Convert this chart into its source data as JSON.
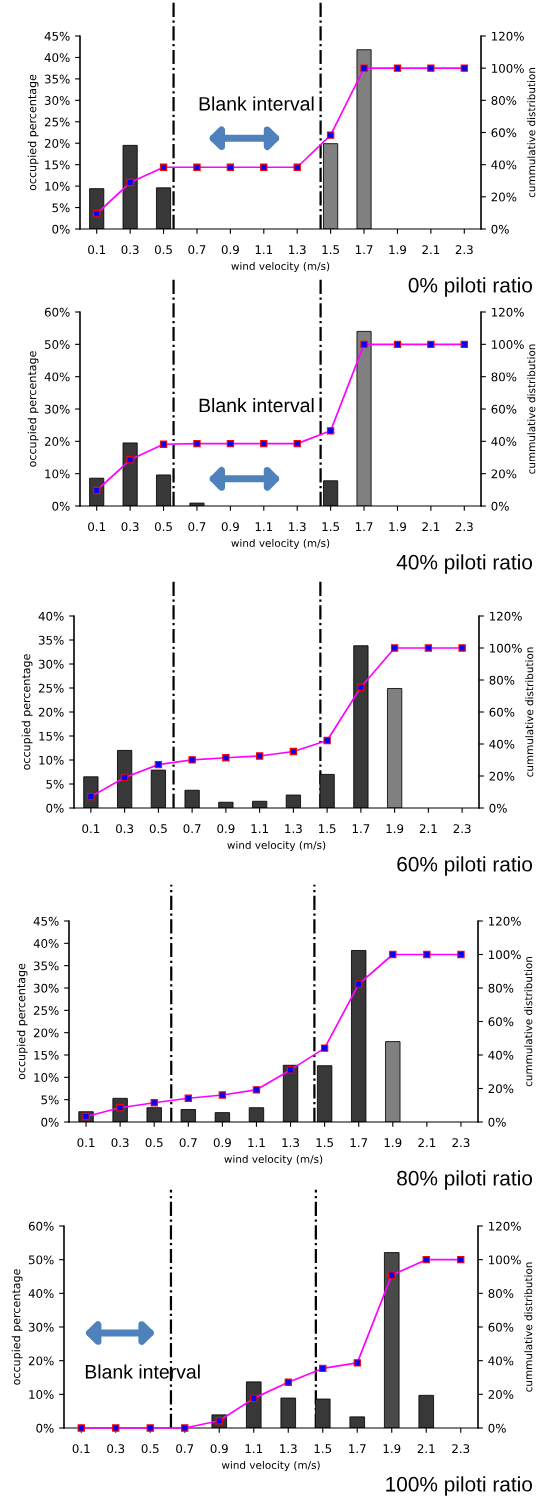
{
  "chart_data": [
    {
      "type": "bar",
      "title": "0% piloti ratio",
      "xlabel": "wind velocity (m/s)",
      "ylabel": "occupied percentage",
      "y2label": "cummulative distribution",
      "x": [
        0.1,
        0.3,
        0.5,
        0.7,
        0.9,
        1.1,
        1.3,
        1.5,
        1.7,
        1.9,
        2.1,
        2.3
      ],
      "xlim": [
        0,
        2.4
      ],
      "xticks": [
        0.1,
        0.3,
        0.5,
        0.7,
        0.9,
        1.1,
        1.3,
        1.5,
        1.7,
        1.9,
        2.1,
        2.3
      ],
      "ylim": [
        0,
        45
      ],
      "yticks": [
        {
          "value": 0,
          "label": "0%"
        },
        {
          "value": 5,
          "label": "5%"
        },
        {
          "value": 10,
          "label": "10%"
        },
        {
          "value": 15,
          "label": "15%"
        },
        {
          "value": 20,
          "label": "20%"
        },
        {
          "value": 25,
          "label": "25%"
        },
        {
          "value": 30,
          "label": "30%"
        },
        {
          "value": 35,
          "label": "35%"
        },
        {
          "value": 40,
          "label": "40%"
        },
        {
          "value": 45,
          "label": "45%"
        }
      ],
      "y2lim": [
        0,
        120
      ],
      "y2ticks": [
        {
          "value": 0,
          "label": "0%"
        },
        {
          "value": 20,
          "label": "20%"
        },
        {
          "value": 40,
          "label": "40%"
        },
        {
          "value": 60,
          "label": "60%"
        },
        {
          "value": 80,
          "label": "80%"
        },
        {
          "value": 100,
          "label": "100%"
        },
        {
          "value": 120,
          "label": "120%"
        }
      ],
      "series": [
        {
          "type": "bar",
          "colors": [
            "#383838",
            "#383838",
            "#383838",
            "#383838",
            "#383838",
            "#383838",
            "#383838",
            "#808080",
            "#808080",
            "#383838",
            "#383838",
            "#383838"
          ],
          "values": [
            9.4,
            19.5,
            9.6,
            0,
            0,
            0,
            0,
            19.9,
            41.8,
            0,
            0,
            0
          ]
        },
        {
          "type": "line",
          "axis": "y2",
          "color": "#ff00ff",
          "marker": "square",
          "values": [
            9.5,
            28.9,
            38.4,
            38.4,
            38.4,
            38.4,
            38.4,
            58.4,
            100,
            100,
            100,
            100
          ]
        }
      ],
      "ref_lines": [
        {
          "axis": "x",
          "value": 0.56,
          "color": "#000000",
          "line_style": "dashdot"
        },
        {
          "axis": "x",
          "value": 1.44,
          "color": "#000000",
          "line_style": "dashdot"
        }
      ],
      "annotations": [
        "Blank interval"
      ]
    },
    {
      "type": "bar",
      "title": "40% piloti ratio",
      "xlabel": "wind velocity (m/s)",
      "ylabel": "occupied percentage",
      "y2label": "cummulative distribution",
      "x": [
        0.1,
        0.3,
        0.5,
        0.7,
        0.9,
        1.1,
        1.3,
        1.5,
        1.7,
        1.9,
        2.1,
        2.3
      ],
      "xlim": [
        0,
        2.4
      ],
      "xticks": [
        0.1,
        0.3,
        0.5,
        0.7,
        0.9,
        1.1,
        1.3,
        1.5,
        1.7,
        1.9,
        2.1,
        2.3
      ],
      "ylim": [
        0,
        60
      ],
      "yticks": [
        {
          "value": 0,
          "label": "0%"
        },
        {
          "value": 10,
          "label": "10%"
        },
        {
          "value": 20,
          "label": "20%"
        },
        {
          "value": 30,
          "label": "30%"
        },
        {
          "value": 40,
          "label": "40%"
        },
        {
          "value": 50,
          "label": "50%"
        },
        {
          "value": 60,
          "label": "60%"
        }
      ],
      "y2lim": [
        0,
        120
      ],
      "y2ticks": [
        {
          "value": 0,
          "label": "0%"
        },
        {
          "value": 20,
          "label": "20%"
        },
        {
          "value": 40,
          "label": "40%"
        },
        {
          "value": 60,
          "label": "60%"
        },
        {
          "value": 80,
          "label": "80%"
        },
        {
          "value": 100,
          "label": "100%"
        },
        {
          "value": 120,
          "label": "120%"
        }
      ],
      "series": [
        {
          "type": "bar",
          "colors": [
            "#383838",
            "#383838",
            "#383838",
            "#383838",
            "#383838",
            "#383838",
            "#383838",
            "#383838",
            "#808080",
            "#383838",
            "#383838",
            "#383838"
          ],
          "values": [
            8.6,
            19.5,
            9.6,
            0.9,
            0,
            0,
            0,
            7.8,
            54.0,
            0,
            0,
            0
          ]
        },
        {
          "type": "line",
          "axis": "y2",
          "color": "#ff00ff",
          "marker": "square",
          "values": [
            9.6,
            28.6,
            38.2,
            38.6,
            38.6,
            38.6,
            38.6,
            46.5,
            100,
            100,
            100,
            100
          ]
        }
      ],
      "ref_lines": [
        {
          "axis": "x",
          "value": 0.56,
          "color": "#000000",
          "line_style": "dashdot"
        },
        {
          "axis": "x",
          "value": 1.44,
          "color": "#000000",
          "line_style": "dashdot"
        }
      ],
      "annotations": [
        "Blank interval"
      ]
    },
    {
      "type": "bar",
      "title": "60% piloti ratio",
      "xlabel": "wind velocity (m/s)",
      "ylabel": "occupied percentage",
      "y2label": "cummulative distribution",
      "x": [
        0.1,
        0.3,
        0.5,
        0.7,
        0.9,
        1.1,
        1.3,
        1.5,
        1.7,
        1.9,
        2.1,
        2.3
      ],
      "xlim": [
        0,
        2.4
      ],
      "xticks": [
        0.1,
        0.3,
        0.5,
        0.7,
        0.9,
        1.1,
        1.3,
        1.5,
        1.7,
        1.9,
        2.1,
        2.3
      ],
      "ylim": [
        0,
        40
      ],
      "yticks": [
        {
          "value": 0,
          "label": "0%"
        },
        {
          "value": 5,
          "label": "5%"
        },
        {
          "value": 10,
          "label": "10%"
        },
        {
          "value": 15,
          "label": "15%"
        },
        {
          "value": 20,
          "label": "20%"
        },
        {
          "value": 25,
          "label": "25%"
        },
        {
          "value": 30,
          "label": "30%"
        },
        {
          "value": 35,
          "label": "35%"
        },
        {
          "value": 40,
          "label": "40%"
        }
      ],
      "y2lim": [
        0,
        120
      ],
      "y2ticks": [
        {
          "value": 0,
          "label": "0%"
        },
        {
          "value": 20,
          "label": "20%"
        },
        {
          "value": 40,
          "label": "40%"
        },
        {
          "value": 60,
          "label": "60%"
        },
        {
          "value": 80,
          "label": "80%"
        },
        {
          "value": 100,
          "label": "100%"
        },
        {
          "value": 120,
          "label": "120%"
        }
      ],
      "series": [
        {
          "type": "bar",
          "colors": [
            "#383838",
            "#383838",
            "#383838",
            "#383838",
            "#383838",
            "#383838",
            "#383838",
            "#383838",
            "#383838",
            "#808080",
            "#383838",
            "#383838"
          ],
          "values": [
            6.5,
            12.0,
            7.9,
            3.7,
            1.2,
            1.4,
            2.7,
            7.0,
            33.8,
            24.9,
            0,
            0
          ]
        },
        {
          "type": "line",
          "axis": "y2",
          "color": "#ff00ff",
          "marker": "square",
          "values": [
            7.1,
            19.1,
            27.1,
            30.1,
            31.4,
            32.5,
            35.3,
            42.2,
            75.5,
            100,
            100,
            100
          ]
        }
      ],
      "ref_lines": [
        {
          "axis": "x",
          "value": 0.59,
          "color": "#000000",
          "line_style": "dashdot"
        },
        {
          "axis": "x",
          "value": 1.46,
          "color": "#000000",
          "line_style": "dashdot"
        }
      ]
    },
    {
      "type": "bar",
      "title": "80% piloti ratio",
      "xlabel": "wind velocity (m/s)",
      "ylabel": "occupied percentage",
      "y2label": "cummulative distribution",
      "x": [
        0.1,
        0.3,
        0.5,
        0.7,
        0.9,
        1.1,
        1.3,
        1.5,
        1.7,
        1.9,
        2.1,
        2.3
      ],
      "xlim": [
        0,
        2.4
      ],
      "xticks": [
        0.1,
        0.3,
        0.5,
        0.7,
        0.9,
        1.1,
        1.3,
        1.5,
        1.7,
        1.9,
        2.1,
        2.3
      ],
      "ylim": [
        0,
        45
      ],
      "yticks": [
        {
          "value": 0,
          "label": "0%"
        },
        {
          "value": 5,
          "label": "5%"
        },
        {
          "value": 10,
          "label": "10%"
        },
        {
          "value": 15,
          "label": "15%"
        },
        {
          "value": 20,
          "label": "20%"
        },
        {
          "value": 25,
          "label": "25%"
        },
        {
          "value": 30,
          "label": "30%"
        },
        {
          "value": 35,
          "label": "35%"
        },
        {
          "value": 40,
          "label": "40%"
        },
        {
          "value": 45,
          "label": "45%"
        }
      ],
      "y2lim": [
        0,
        120
      ],
      "y2ticks": [
        {
          "value": 0,
          "label": "0%"
        },
        {
          "value": 20,
          "label": "20%"
        },
        {
          "value": 40,
          "label": "40%"
        },
        {
          "value": 60,
          "label": "60%"
        },
        {
          "value": 80,
          "label": "80%"
        },
        {
          "value": 100,
          "label": "100%"
        },
        {
          "value": 120,
          "label": "120%"
        }
      ],
      "series": [
        {
          "type": "bar",
          "colors": [
            "#383838",
            "#383838",
            "#383838",
            "#383838",
            "#383838",
            "#383838",
            "#383838",
            "#383838",
            "#383838",
            "#808080",
            "#383838",
            "#383838"
          ],
          "values": [
            2.3,
            5.3,
            3.2,
            2.8,
            2.1,
            3.2,
            12.7,
            12.6,
            38.4,
            18.0,
            0,
            0
          ]
        },
        {
          "type": "line",
          "axis": "y2",
          "color": "#ff00ff",
          "marker": "square",
          "values": [
            3.3,
            8.5,
            11.5,
            14.2,
            16.1,
            19.2,
            31.1,
            44.1,
            82.3,
            100,
            100,
            100
          ]
        }
      ],
      "ref_lines": [
        {
          "axis": "x",
          "value": 0.6,
          "color": "#000000",
          "line_style": "dashdot"
        },
        {
          "axis": "x",
          "value": 1.44,
          "color": "#000000",
          "line_style": "dashdot"
        }
      ]
    },
    {
      "type": "bar",
      "title": "100% piloti ratio",
      "xlabel": "wind velocity (m/s)",
      "ylabel": "occupied percentage",
      "y2label": "cummulative distribution",
      "x": [
        0.1,
        0.3,
        0.5,
        0.7,
        0.9,
        1.1,
        1.3,
        1.5,
        1.7,
        1.9,
        2.1,
        2.3
      ],
      "xlim": [
        0,
        2.4
      ],
      "xticks": [
        0.1,
        0.3,
        0.5,
        0.7,
        0.9,
        1.1,
        1.3,
        1.5,
        1.7,
        1.9,
        2.1,
        2.3
      ],
      "ylim": [
        0,
        60
      ],
      "yticks": [
        {
          "value": 0,
          "label": "0%"
        },
        {
          "value": 10,
          "label": "10%"
        },
        {
          "value": 20,
          "label": "20%"
        },
        {
          "value": 30,
          "label": "30%"
        },
        {
          "value": 40,
          "label": "40%"
        },
        {
          "value": 50,
          "label": "50%"
        },
        {
          "value": 60,
          "label": "60%"
        }
      ],
      "y2lim": [
        0,
        120
      ],
      "y2ticks": [
        {
          "value": 0,
          "label": "0%"
        },
        {
          "value": 20,
          "label": "20%"
        },
        {
          "value": 40,
          "label": "40%"
        },
        {
          "value": 60,
          "label": "60%"
        },
        {
          "value": 80,
          "label": "80%"
        },
        {
          "value": 100,
          "label": "100%"
        },
        {
          "value": 120,
          "label": "120%"
        }
      ],
      "series": [
        {
          "type": "bar",
          "colors": [
            "#383838",
            "#383838",
            "#383838",
            "#383838",
            "#383838",
            "#383838",
            "#383838",
            "#383838",
            "#383838",
            "#4a4a4a",
            "#383838",
            "#383838"
          ],
          "values": [
            0,
            0,
            0,
            0,
            3.9,
            13.7,
            8.9,
            8.6,
            3.3,
            52.1,
            9.7,
            0
          ]
        },
        {
          "type": "line",
          "axis": "y2",
          "color": "#ff00ff",
          "marker": "square",
          "values": [
            0,
            0,
            0,
            0,
            4.3,
            17.6,
            27.2,
            35.4,
            38.7,
            90.8,
            100,
            100
          ]
        }
      ],
      "ref_lines": [
        {
          "axis": "x",
          "value": 0.62,
          "color": "#000000",
          "line_style": "dashdot"
        },
        {
          "axis": "x",
          "value": 1.46,
          "color": "#000000",
          "line_style": "dashdot"
        }
      ],
      "annotations": [
        "Blank interval"
      ]
    }
  ]
}
